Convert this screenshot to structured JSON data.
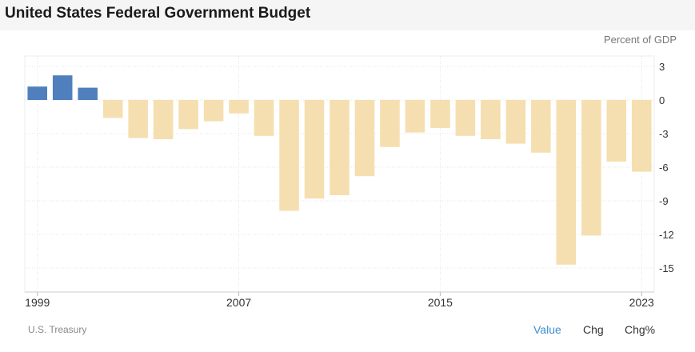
{
  "header": {
    "title": "United States Federal Government Budget"
  },
  "chart_data": {
    "type": "bar",
    "title": "United States Federal Government Budget",
    "unit_label": "Percent of GDP",
    "categories": [
      "1999",
      "2000",
      "2001",
      "2002",
      "2003",
      "2004",
      "2005",
      "2006",
      "2007",
      "2008",
      "2009",
      "2010",
      "2011",
      "2012",
      "2013",
      "2014",
      "2015",
      "2016",
      "2017",
      "2018",
      "2019",
      "2020",
      "2021",
      "2022",
      "2023"
    ],
    "values": [
      1.2,
      2.2,
      1.1,
      -1.6,
      -3.4,
      -3.5,
      -2.6,
      -1.9,
      -1.2,
      -3.2,
      -9.9,
      -8.8,
      -8.5,
      -6.8,
      -4.2,
      -2.9,
      -2.5,
      -3.2,
      -3.5,
      -3.9,
      -4.7,
      -14.7,
      -12.1,
      -5.5,
      -6.4
    ],
    "x_tick_labels": [
      "1999",
      "2007",
      "2015",
      "2023"
    ],
    "y_ticks": [
      3,
      0,
      -3,
      -6,
      -9,
      -12,
      -15
    ],
    "ylim": [
      -16.5,
      4
    ],
    "grid": true,
    "colors": {
      "positive": "#4f80bd",
      "negative": "#f5dfb0"
    }
  },
  "footer": {
    "source": "U.S. Treasury",
    "tabs": [
      {
        "label": "Value",
        "active": true
      },
      {
        "label": "Chg",
        "active": false
      },
      {
        "label": "Chg%",
        "active": false
      }
    ]
  }
}
